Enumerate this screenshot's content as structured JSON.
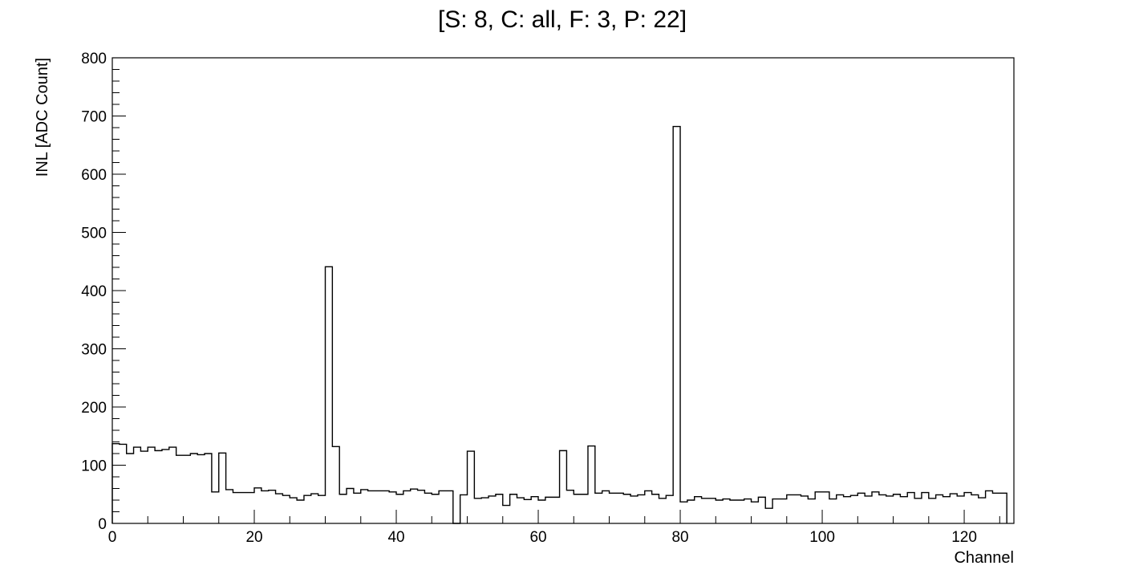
{
  "chart_data": {
    "type": "histogram",
    "title": "[S: 8, C: all, F: 3, P: 22]",
    "xlabel": "Channel",
    "ylabel": "INL [ADC Count]",
    "xlim": [
      0,
      127
    ],
    "ylim": [
      0,
      800
    ],
    "x_ticks": [
      0,
      20,
      40,
      60,
      80,
      100,
      120
    ],
    "y_ticks": [
      0,
      100,
      200,
      300,
      400,
      500,
      600,
      700,
      800
    ],
    "grid": false,
    "bin_width": 1,
    "bin_start": 0,
    "series": [
      {
        "values": [
          137,
          136,
          120,
          131,
          124,
          131,
          125,
          127,
          131,
          117,
          117,
          120,
          118,
          120,
          54,
          121,
          58,
          53,
          53,
          53,
          61,
          56,
          57,
          51,
          48,
          44,
          40,
          48,
          51,
          48,
          441,
          132,
          50,
          60,
          52,
          58,
          56,
          56,
          56,
          54,
          50,
          56,
          59,
          57,
          52,
          50,
          56,
          56,
          0,
          49,
          124,
          43,
          44,
          47,
          50,
          31,
          50,
          44,
          41,
          46,
          40,
          45,
          45,
          125,
          57,
          50,
          50,
          133,
          52,
          56,
          52,
          52,
          50,
          47,
          49,
          56,
          50,
          43,
          48,
          682,
          37,
          40,
          46,
          43,
          43,
          40,
          42,
          40,
          40,
          42,
          37,
          45,
          26,
          42,
          42,
          49,
          49,
          47,
          42,
          54,
          54,
          42,
          49,
          46,
          48,
          52,
          47,
          54,
          49,
          47,
          50,
          46,
          53,
          43,
          53,
          43,
          49,
          46,
          51,
          47,
          53,
          49,
          44,
          56,
          52,
          52
        ]
      }
    ]
  }
}
